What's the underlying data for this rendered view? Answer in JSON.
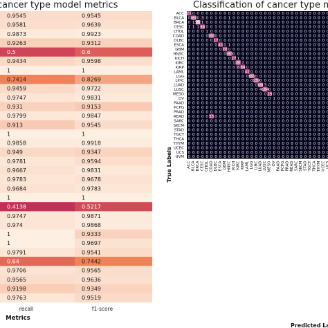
{
  "chart_data": [
    {
      "type": "heatmap",
      "title": "cancer type model metrics",
      "xlabel": "Metrics",
      "columns": [
        "recall",
        "f1-score"
      ],
      "recall": [
        0.9545,
        0.9581,
        0.9873,
        0.9263,
        0.5,
        0.9434,
        1,
        0.7414,
        0.9459,
        0.9747,
        0.931,
        0.9799,
        0.913,
        1,
        0.9858,
        0.949,
        0.9781,
        0.9667,
        0.9783,
        0.9684,
        1,
        0.4138,
        0.9747,
        0.974,
        1,
        1,
        0.9791,
        0.64,
        0.9706,
        0.9565,
        0.9198,
        0.9763
      ],
      "f1": [
        0.9545,
        0.9639,
        0.9923,
        0.9312,
        0.6,
        0.9598,
        1,
        0.8269,
        0.9722,
        0.9831,
        0.9153,
        0.9847,
        0.9545,
        1,
        0.9918,
        0.9347,
        0.9594,
        0.9831,
        0.9678,
        0.9783,
        1,
        0.5217,
        0.9871,
        0.9868,
        0.9333,
        0.9697,
        0.9541,
        0.7442,
        0.9565,
        0.9636,
        0.9349,
        0.9519
      ]
    },
    {
      "type": "heatmap",
      "title": "Classification of cancer type m",
      "xlabel": "Predicted Labels",
      "ylabel": "True Labels",
      "labels": [
        "ACC",
        "BLCA",
        "BRCA",
        "CESC",
        "CHOL",
        "COAD",
        "DLBC",
        "ESCA",
        "GBM",
        "HNSC",
        "KICH",
        "KIRC",
        "KIRP",
        "LAML",
        "LGG",
        "LIHC",
        "LUAD",
        "LUSC",
        "MESO",
        "OV",
        "PAAD",
        "PCPG",
        "PRAD",
        "READ",
        "SARC",
        "SKCM",
        "STAD",
        "TGCT",
        "THCA",
        "THYM",
        "UCEC",
        "UCS",
        "UVM"
      ],
      "matrix": [
        [
          21,
          0,
          0,
          0,
          0,
          0,
          0,
          0,
          0,
          0,
          0,
          0,
          0,
          0,
          0,
          0,
          0,
          0,
          0,
          0,
          0,
          0,
          0,
          0,
          0,
          0,
          0,
          0,
          0,
          0,
          0,
          0,
          0
        ],
        [
          0,
          160,
          0,
          3,
          0,
          0,
          1,
          0,
          0,
          1,
          0,
          0,
          0,
          0,
          0,
          0,
          0,
          0,
          0,
          0,
          0,
          0,
          0,
          0,
          0,
          0,
          0,
          0,
          0,
          0,
          0,
          0,
          0
        ],
        [
          0,
          1,
          388,
          1,
          0,
          0,
          0,
          0,
          0,
          0,
          0,
          0,
          0,
          0,
          0,
          0,
          0,
          0,
          0,
          0,
          0,
          0,
          0,
          0,
          0,
          0,
          0,
          0,
          0,
          0,
          0,
          0,
          0
        ],
        [
          1,
          1,
          1,
          88,
          0,
          0,
          1,
          0,
          0,
          0,
          0,
          0,
          0,
          0,
          0,
          0,
          0,
          0,
          0,
          0,
          0,
          0,
          0,
          0,
          0,
          0,
          0,
          0,
          0,
          0,
          0,
          0,
          0
        ],
        [
          0,
          0,
          0,
          0,
          1,
          0,
          0,
          0,
          0,
          0,
          0,
          0,
          0,
          0,
          0,
          0,
          0,
          0,
          0,
          0,
          0,
          0,
          0,
          0,
          0,
          0,
          0,
          0,
          0,
          0,
          0,
          0,
          0
        ],
        [
          0,
          0,
          0,
          0,
          0,
          150,
          0,
          0,
          0,
          0,
          0,
          0,
          0,
          0,
          0,
          0,
          0,
          0,
          0,
          0,
          0,
          0,
          0,
          0,
          0,
          0,
          0,
          0,
          0,
          0,
          0,
          0,
          0
        ],
        [
          0,
          0,
          0,
          0,
          0,
          0,
          17,
          0,
          0,
          0,
          0,
          0,
          0,
          0,
          0,
          0,
          0,
          0,
          0,
          0,
          0,
          0,
          0,
          0,
          0,
          0,
          0,
          0,
          0,
          0,
          0,
          0,
          0
        ],
        [
          0,
          0,
          0,
          0,
          0,
          0,
          0,
          43,
          0,
          1,
          0,
          0,
          0,
          0,
          0,
          0,
          0,
          0,
          0,
          0,
          0,
          0,
          0,
          0,
          0,
          0,
          0,
          0,
          0,
          0,
          0,
          0,
          0
        ],
        [
          0,
          0,
          0,
          0,
          0,
          0,
          0,
          0,
          70,
          0,
          0,
          0,
          0,
          0,
          0,
          0,
          0,
          0,
          0,
          0,
          0,
          0,
          0,
          0,
          0,
          0,
          0,
          0,
          0,
          0,
          0,
          0,
          0
        ],
        [
          0,
          0,
          0,
          0,
          0,
          0,
          0,
          0,
          0,
          193,
          0,
          0,
          0,
          0,
          0,
          0,
          0,
          0,
          0,
          0,
          0,
          0,
          0,
          0,
          0,
          0,
          0,
          0,
          0,
          0,
          0,
          0,
          0
        ],
        [
          0,
          0,
          0,
          0,
          0,
          0,
          0,
          0,
          0,
          0,
          27,
          1,
          0,
          0,
          0,
          0,
          0,
          0,
          0,
          0,
          0,
          0,
          0,
          0,
          0,
          0,
          0,
          0,
          0,
          0,
          0,
          0,
          0
        ],
        [
          0,
          0,
          0,
          0,
          0,
          0,
          0,
          0,
          0,
          0,
          1,
          195,
          2,
          0,
          0,
          0,
          0,
          0,
          0,
          0,
          0,
          0,
          0,
          0,
          0,
          0,
          0,
          0,
          0,
          0,
          0,
          0,
          0
        ],
        [
          0,
          0,
          0,
          0,
          0,
          0,
          0,
          0,
          0,
          0,
          0,
          8,
          84,
          0,
          0,
          0,
          0,
          0,
          0,
          0,
          0,
          0,
          0,
          0,
          0,
          0,
          0,
          0,
          0,
          0,
          0,
          0,
          0
        ],
        [
          0,
          0,
          0,
          0,
          0,
          0,
          0,
          0,
          0,
          0,
          0,
          0,
          0,
          42,
          0,
          0,
          0,
          0,
          0,
          0,
          0,
          0,
          0,
          0,
          0,
          0,
          0,
          0,
          0,
          0,
          0,
          0,
          0
        ],
        [
          0,
          0,
          0,
          0,
          0,
          0,
          0,
          0,
          0,
          0,
          0,
          0,
          0,
          0,
          181,
          0,
          0,
          0,
          0,
          0,
          0,
          0,
          0,
          0,
          0,
          0,
          0,
          0,
          0,
          0,
          0,
          0,
          0
        ],
        [
          0,
          0,
          0,
          0,
          0,
          0,
          0,
          0,
          0,
          0,
          0,
          0,
          0,
          0,
          0,
          139,
          0,
          0,
          0,
          0,
          0,
          0,
          0,
          0,
          0,
          0,
          0,
          0,
          0,
          0,
          0,
          0,
          0
        ],
        [
          0,
          0,
          0,
          0,
          0,
          0,
          0,
          0,
          0,
          0,
          0,
          0,
          0,
          0,
          0,
          0,
          186,
          3,
          0,
          0,
          0,
          0,
          0,
          0,
          0,
          0,
          0,
          0,
          0,
          0,
          0,
          0,
          0
        ],
        [
          0,
          0,
          0,
          0,
          0,
          0,
          0,
          0,
          0,
          0,
          0,
          0,
          0,
          0,
          0,
          0,
          4,
          164,
          0,
          0,
          0,
          0,
          0,
          0,
          0,
          0,
          0,
          0,
          0,
          0,
          0,
          0,
          0
        ],
        [
          0,
          0,
          0,
          0,
          0,
          0,
          0,
          0,
          0,
          0,
          0,
          0,
          0,
          0,
          0,
          0,
          0,
          0,
          29,
          0,
          0,
          0,
          0,
          0,
          0,
          0,
          0,
          0,
          0,
          0,
          0,
          0,
          0
        ],
        [
          0,
          0,
          0,
          0,
          0,
          0,
          0,
          0,
          0,
          0,
          0,
          0,
          0,
          0,
          0,
          0,
          0,
          0,
          0,
          1,
          0,
          0,
          0,
          0,
          0,
          0,
          0,
          0,
          0,
          0,
          0,
          0,
          0
        ],
        [
          0,
          0,
          0,
          0,
          0,
          0,
          0,
          0,
          0,
          0,
          0,
          0,
          0,
          0,
          0,
          0,
          0,
          0,
          0,
          0,
          0,
          0,
          0,
          0,
          0,
          0,
          0,
          0,
          0,
          0,
          0,
          0,
          0
        ],
        [
          0,
          0,
          0,
          0,
          0,
          0,
          0,
          0,
          0,
          0,
          0,
          0,
          0,
          0,
          0,
          0,
          0,
          0,
          0,
          0,
          0,
          0,
          0,
          0,
          0,
          0,
          0,
          0,
          0,
          0,
          0,
          0,
          0
        ],
        [
          0,
          0,
          0,
          0,
          0,
          0,
          0,
          0,
          0,
          0,
          0,
          0,
          0,
          0,
          0,
          0,
          0,
          0,
          0,
          0,
          0,
          0,
          0,
          0,
          0,
          0,
          0,
          0,
          0,
          0,
          0,
          0,
          0
        ],
        [
          0,
          0,
          0,
          0,
          0,
          33,
          0,
          0,
          0,
          0,
          0,
          0,
          0,
          0,
          0,
          0,
          0,
          0,
          0,
          0,
          0,
          0,
          0,
          0,
          0,
          0,
          0,
          0,
          0,
          0,
          0,
          0,
          0
        ],
        [
          0,
          0,
          0,
          0,
          0,
          0,
          0,
          0,
          0,
          0,
          0,
          0,
          0,
          0,
          0,
          0,
          0,
          0,
          0,
          0,
          0,
          0,
          0,
          0,
          0,
          0,
          0,
          0,
          0,
          0,
          0,
          0,
          0
        ],
        [
          0,
          0,
          0,
          0,
          0,
          0,
          0,
          0,
          0,
          0,
          0,
          0,
          0,
          0,
          0,
          0,
          0,
          0,
          0,
          0,
          0,
          0,
          0,
          0,
          0,
          0,
          0,
          0,
          0,
          0,
          0,
          0,
          0
        ],
        [
          0,
          0,
          0,
          0,
          0,
          0,
          0,
          0,
          0,
          0,
          0,
          0,
          0,
          0,
          0,
          0,
          0,
          0,
          0,
          0,
          0,
          0,
          0,
          0,
          0,
          0,
          0,
          0,
          0,
          0,
          0,
          0,
          0
        ],
        [
          0,
          0,
          0,
          0,
          0,
          0,
          0,
          0,
          0,
          0,
          0,
          0,
          0,
          0,
          0,
          0,
          0,
          0,
          0,
          0,
          0,
          0,
          0,
          0,
          0,
          0,
          0,
          0,
          0,
          0,
          0,
          0,
          0
        ],
        [
          0,
          0,
          0,
          0,
          0,
          0,
          0,
          0,
          0,
          0,
          0,
          0,
          0,
          0,
          0,
          0,
          0,
          0,
          0,
          0,
          0,
          0,
          0,
          0,
          0,
          0,
          0,
          0,
          0,
          0,
          0,
          0,
          0
        ],
        [
          0,
          0,
          0,
          0,
          0,
          0,
          0,
          0,
          0,
          0,
          0,
          0,
          0,
          0,
          0,
          0,
          0,
          0,
          0,
          0,
          0,
          0,
          0,
          0,
          0,
          0,
          0,
          0,
          0,
          0,
          0,
          0,
          0
        ],
        [
          0,
          0,
          0,
          0,
          0,
          0,
          0,
          0,
          0,
          0,
          0,
          0,
          0,
          0,
          0,
          0,
          0,
          0,
          0,
          0,
          0,
          0,
          0,
          0,
          0,
          0,
          0,
          0,
          0,
          0,
          0,
          0,
          0
        ],
        [
          0,
          0,
          0,
          0,
          0,
          0,
          0,
          0,
          0,
          0,
          0,
          0,
          0,
          0,
          0,
          0,
          0,
          0,
          0,
          0,
          0,
          0,
          0,
          0,
          0,
          0,
          0,
          0,
          0,
          0,
          0,
          0,
          0
        ],
        [
          0,
          0,
          0,
          0,
          0,
          0,
          0,
          0,
          0,
          0,
          0,
          0,
          0,
          0,
          0,
          0,
          0,
          0,
          0,
          0,
          0,
          0,
          0,
          0,
          0,
          0,
          0,
          0,
          0,
          0,
          0,
          0,
          0
        ]
      ]
    }
  ],
  "colors": {
    "metric_low": "#c32b57",
    "metric_mid": "#f08458",
    "metric_high": "#fdf0e3",
    "cm_background": "#05051f",
    "cm_diag": "#b03d72",
    "cm_peak": "#f0a6c0"
  }
}
